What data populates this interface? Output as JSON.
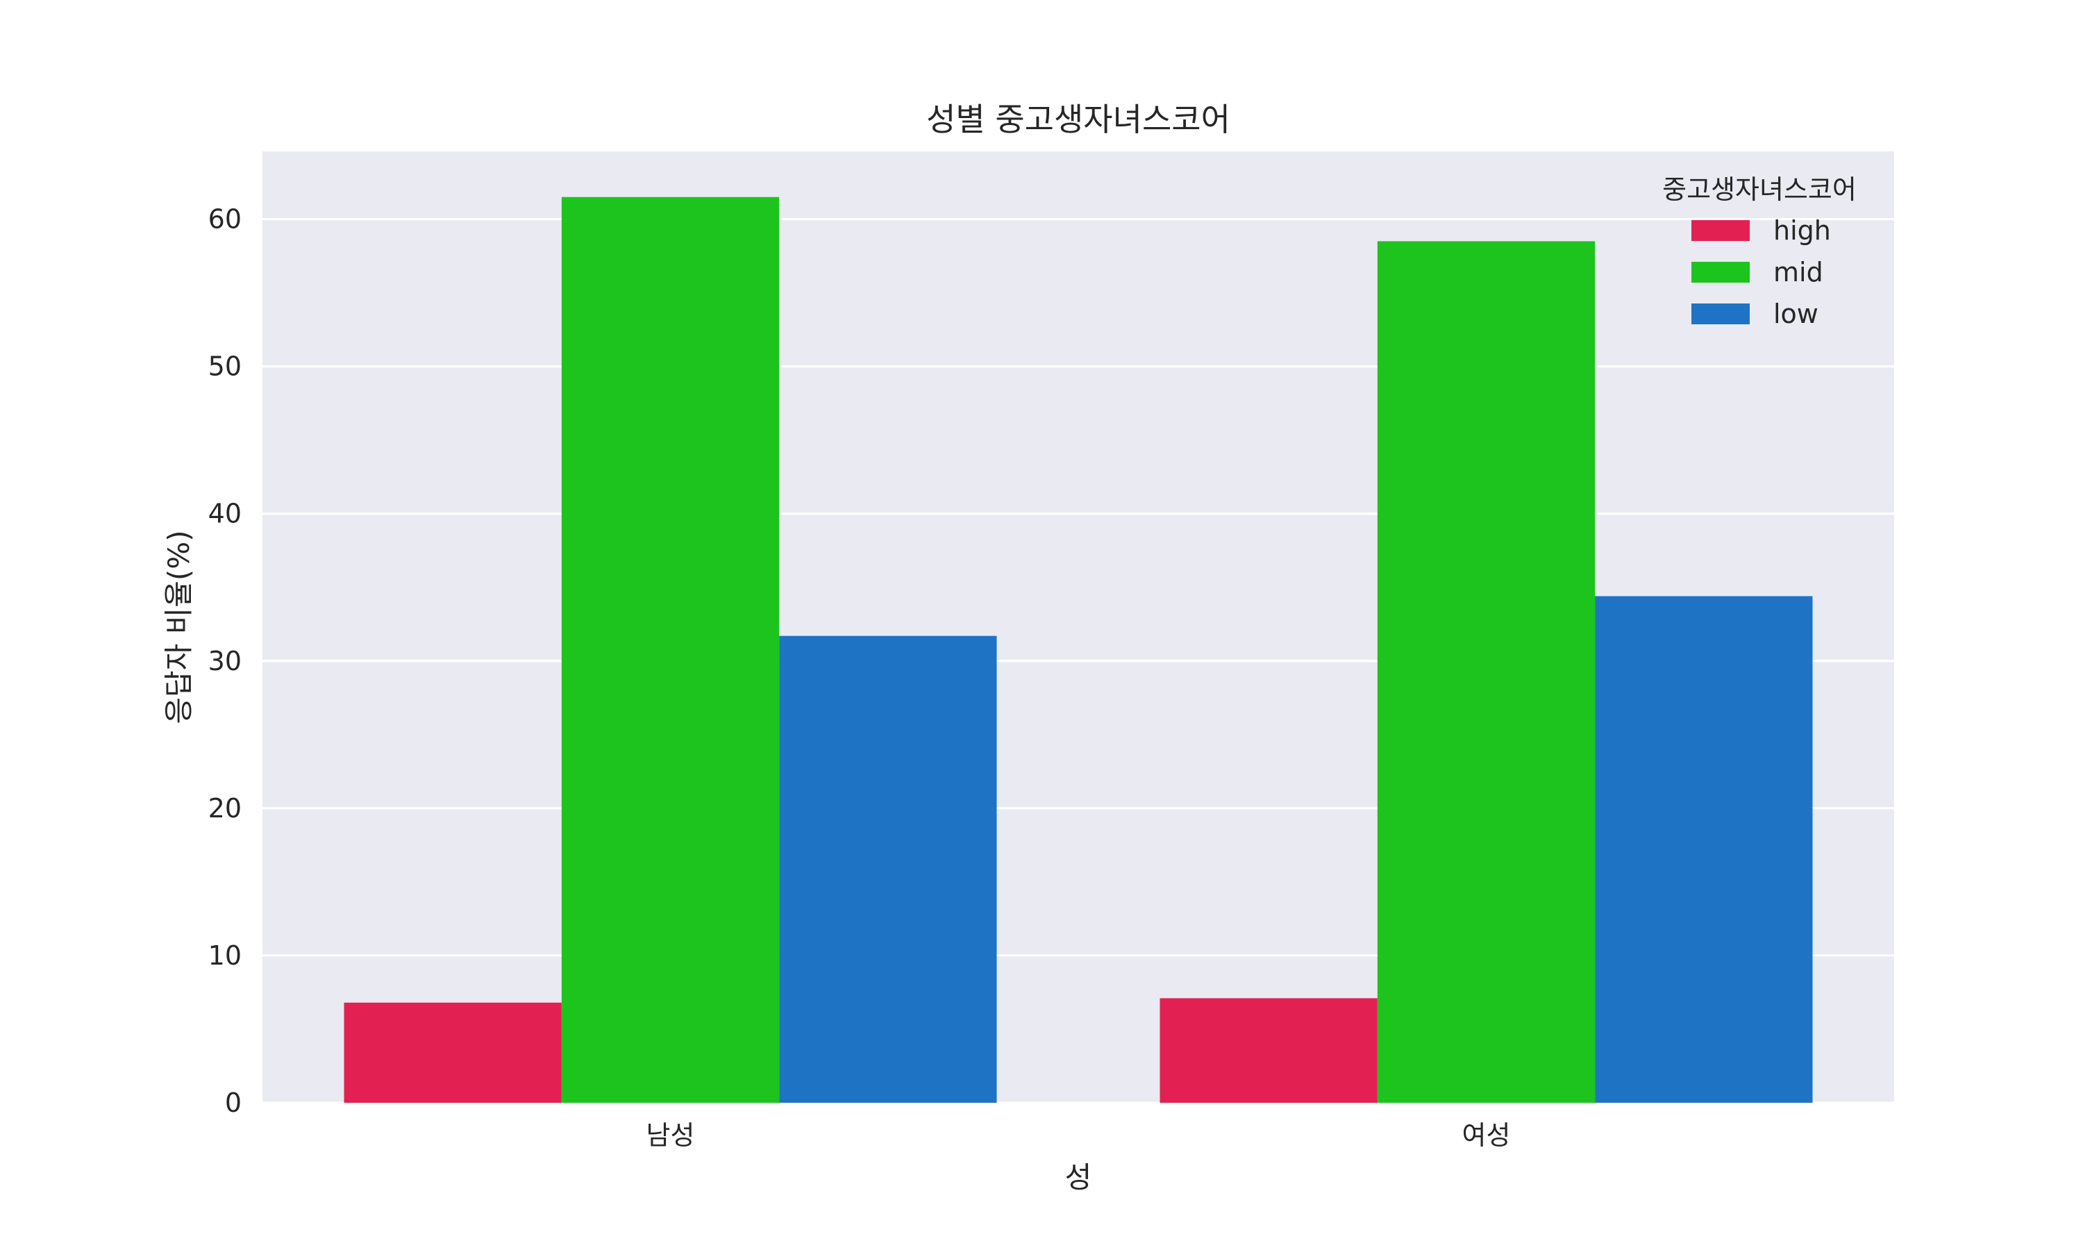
{
  "chart_data": {
    "type": "bar",
    "title": "성별 중고생자녀스코어",
    "xlabel": "성",
    "ylabel": "응답자 비율(%)",
    "categories": [
      "남성",
      "여성"
    ],
    "series": [
      {
        "name": "high",
        "color": "#e22152",
        "values": [
          6.8,
          7.1
        ]
      },
      {
        "name": "mid",
        "color": "#1dc41d",
        "values": [
          61.5,
          58.5
        ]
      },
      {
        "name": "low",
        "color": "#1f73c4",
        "values": [
          31.7,
          34.4
        ]
      }
    ],
    "ylim": [
      0,
      64.6
    ],
    "yticks": [
      0,
      10,
      20,
      30,
      40,
      50,
      60
    ],
    "grid": true,
    "background_color": "#eaeaf2",
    "legend": {
      "title": "중고생자녀스코어",
      "position": "top-right"
    }
  }
}
